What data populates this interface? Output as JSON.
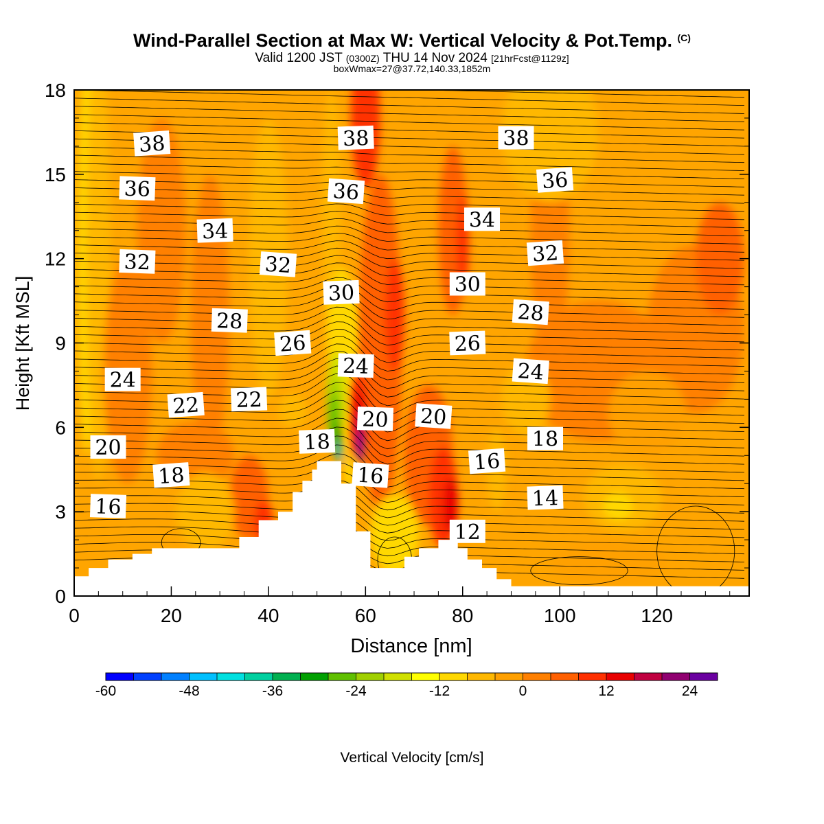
{
  "title": {
    "main": "Wind-Parallel Section at Max W: Vertical Velocity & Pot.Temp.",
    "copyright": "(C)",
    "valid_prefix": "Valid 1200 JST",
    "valid_z": "(0300Z)",
    "valid_date": "THU 14 Nov 2024",
    "forecast": "[21hrFcst@1129z]",
    "box": "boxWmax=27@37.72,140.33,1852m"
  },
  "chart_data": {
    "type": "heatmap",
    "xlabel": "Distance [nm]",
    "ylabel": "Height [Kft MSL]",
    "xlim": [
      0,
      139
    ],
    "ylim": [
      0,
      18
    ],
    "x_ticks": [
      0,
      20,
      40,
      60,
      80,
      100,
      120
    ],
    "y_ticks": [
      0,
      3,
      6,
      9,
      12,
      15,
      18
    ],
    "colorbar": {
      "label": "Vertical Velocity [cm/s]",
      "min": -60,
      "max": 28,
      "step": 4,
      "tick_values": [
        -60,
        -48,
        -36,
        -24,
        -12,
        0,
        12,
        24
      ],
      "colors": [
        "#0000ff",
        "#0040ff",
        "#0080ff",
        "#00c0ff",
        "#00e0e0",
        "#00d0a0",
        "#00b050",
        "#00a000",
        "#60c000",
        "#a0d000",
        "#d0e000",
        "#ffff00",
        "#ffd800",
        "#ffb800",
        "#ffa000",
        "#ff8000",
        "#ff6000",
        "#ff3000",
        "#e80000",
        "#c00040",
        "#900070",
        "#6a00a0"
      ]
    },
    "potential_temperature_labels": [
      {
        "value": "38",
        "x": 16,
        "y": 16.1
      },
      {
        "value": "38",
        "x": 58,
        "y": 16.3
      },
      {
        "value": "38",
        "x": 91,
        "y": 16.3
      },
      {
        "value": "36",
        "x": 13,
        "y": 14.5
      },
      {
        "value": "36",
        "x": 56,
        "y": 14.4
      },
      {
        "value": "36",
        "x": 99,
        "y": 14.8
      },
      {
        "value": "34",
        "x": 29,
        "y": 13.0
      },
      {
        "value": "34",
        "x": 84,
        "y": 13.4
      },
      {
        "value": "32",
        "x": 13,
        "y": 11.9
      },
      {
        "value": "32",
        "x": 42,
        "y": 11.8
      },
      {
        "value": "32",
        "x": 97,
        "y": 12.2
      },
      {
        "value": "30",
        "x": 55,
        "y": 10.8
      },
      {
        "value": "30",
        "x": 81,
        "y": 11.1
      },
      {
        "value": "28",
        "x": 32,
        "y": 9.8
      },
      {
        "value": "28",
        "x": 94,
        "y": 10.1
      },
      {
        "value": "26",
        "x": 45,
        "y": 9.0
      },
      {
        "value": "26",
        "x": 81,
        "y": 9.0
      },
      {
        "value": "24",
        "x": 10,
        "y": 7.7
      },
      {
        "value": "24",
        "x": 58,
        "y": 8.2
      },
      {
        "value": "24",
        "x": 94,
        "y": 8.0
      },
      {
        "value": "22",
        "x": 23,
        "y": 6.8
      },
      {
        "value": "22",
        "x": 36,
        "y": 7.0
      },
      {
        "value": "20",
        "x": 7,
        "y": 5.3
      },
      {
        "value": "20",
        "x": 62,
        "y": 6.3
      },
      {
        "value": "20",
        "x": 74,
        "y": 6.4
      },
      {
        "value": "18",
        "x": 20,
        "y": 4.3
      },
      {
        "value": "18",
        "x": 50,
        "y": 5.5
      },
      {
        "value": "18",
        "x": 97,
        "y": 5.6
      },
      {
        "value": "16",
        "x": 7,
        "y": 3.2
      },
      {
        "value": "16",
        "x": 61,
        "y": 4.3
      },
      {
        "value": "16",
        "x": 85,
        "y": 4.8
      },
      {
        "value": "14",
        "x": 97,
        "y": 3.5
      },
      {
        "value": "12",
        "x": 81,
        "y": 2.3
      }
    ],
    "terrain": [
      [
        0,
        0.7
      ],
      [
        3,
        0.7
      ],
      [
        3,
        1.0
      ],
      [
        7,
        1.0
      ],
      [
        7,
        1.3
      ],
      [
        12,
        1.3
      ],
      [
        12,
        1.5
      ],
      [
        16,
        1.5
      ],
      [
        16,
        1.7
      ],
      [
        34,
        1.7
      ],
      [
        34,
        2.1
      ],
      [
        38,
        2.1
      ],
      [
        38,
        2.7
      ],
      [
        42,
        2.7
      ],
      [
        42,
        3.0
      ],
      [
        45,
        3.0
      ],
      [
        45,
        3.7
      ],
      [
        47,
        3.7
      ],
      [
        47,
        4.1
      ],
      [
        49,
        4.1
      ],
      [
        49,
        4.5
      ],
      [
        50,
        4.5
      ],
      [
        50,
        4.8
      ],
      [
        55,
        4.8
      ],
      [
        55,
        4.0
      ],
      [
        58,
        4.0
      ],
      [
        58,
        2.3
      ],
      [
        61,
        2.3
      ],
      [
        61,
        1.0
      ],
      [
        68,
        1.0
      ],
      [
        68,
        1.4
      ],
      [
        71,
        1.4
      ],
      [
        71,
        1.7
      ],
      [
        75,
        1.7
      ],
      [
        75,
        2.0
      ],
      [
        79,
        2.0
      ],
      [
        79,
        1.7
      ],
      [
        81,
        1.7
      ],
      [
        81,
        1.3
      ],
      [
        84,
        1.3
      ],
      [
        84,
        1.0
      ],
      [
        87,
        1.0
      ],
      [
        87,
        0.6
      ],
      [
        90,
        0.6
      ],
      [
        90,
        0.35
      ],
      [
        139,
        0.35
      ]
    ]
  }
}
